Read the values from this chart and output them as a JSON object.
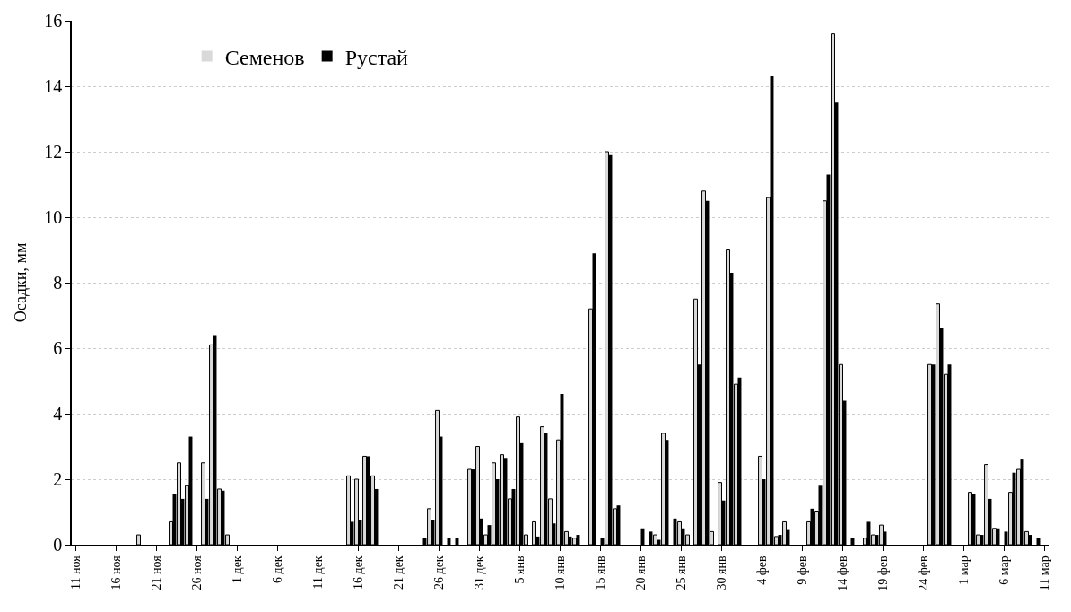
{
  "chart_data": {
    "type": "bar",
    "ylabel": "Осадки, мм",
    "categories": [
      "11 ноя",
      null,
      null,
      null,
      null,
      "16 ноя",
      null,
      null,
      null,
      null,
      "21 ноя",
      null,
      null,
      null,
      null,
      "26 ноя",
      null,
      null,
      null,
      null,
      "1 дек",
      null,
      null,
      null,
      null,
      "6 дек",
      null,
      null,
      null,
      null,
      "11 дек",
      null,
      null,
      null,
      null,
      "16 дек",
      null,
      null,
      null,
      null,
      "21 дек",
      null,
      null,
      null,
      null,
      "26 дек",
      null,
      null,
      null,
      null,
      "31 дек",
      null,
      null,
      null,
      null,
      "5 янв",
      null,
      null,
      null,
      null,
      "10 янв",
      null,
      null,
      null,
      null,
      "15 янв",
      null,
      null,
      null,
      null,
      "20 янв",
      null,
      null,
      null,
      null,
      "25 янв",
      null,
      null,
      null,
      null,
      "30 янв",
      null,
      null,
      null,
      null,
      "4 фев",
      null,
      null,
      null,
      null,
      "9 фев",
      null,
      null,
      null,
      null,
      "14 фев",
      null,
      null,
      null,
      null,
      "19 фев",
      null,
      null,
      null,
      null,
      "24 фев",
      null,
      null,
      null,
      null,
      "1 мар",
      null,
      null,
      null,
      null,
      "6 мар",
      null,
      null,
      null,
      null,
      "11 мар"
    ],
    "series": [
      {
        "name": "Семенов",
        "color": "#d9d9d9",
        "values": [
          0,
          0,
          0,
          0,
          0,
          0,
          0,
          0,
          0.3,
          0,
          0,
          0,
          0.7,
          2.5,
          1.8,
          0,
          2.5,
          6.1,
          1.7,
          0.3,
          0,
          0,
          0,
          0,
          0,
          0,
          0,
          0,
          0,
          0,
          0,
          0,
          0,
          0,
          2.1,
          2.0,
          2.7,
          2.1,
          0,
          0,
          0,
          0,
          0,
          0,
          1.1,
          4.1,
          0,
          0,
          0,
          2.3,
          3.0,
          0.3,
          2.5,
          2.75,
          1.4,
          3.9,
          0.3,
          0.7,
          3.6,
          1.4,
          3.2,
          0.4,
          0.2,
          0,
          7.2,
          0,
          12.0,
          1.1,
          0,
          0,
          0,
          0,
          0.3,
          3.4,
          0,
          0.7,
          0.3,
          7.5,
          10.8,
          0.4,
          1.9,
          9.0,
          4.9,
          0,
          0,
          2.7,
          10.6,
          0.25,
          0.7,
          0,
          0,
          0.7,
          1.0,
          10.5,
          15.6,
          5.5,
          0,
          0,
          0.2,
          0.3,
          0.6,
          0,
          0,
          0,
          0,
          0,
          5.5,
          7.35,
          5.2,
          0,
          0,
          1.6,
          0.3,
          2.45,
          0.5,
          0,
          1.6,
          2.3,
          0.4,
          0,
          0
        ]
      },
      {
        "name": "Рустай",
        "color": "#000000",
        "values": [
          0,
          0,
          0,
          0,
          0,
          0,
          0,
          0,
          0,
          0,
          0,
          0,
          1.55,
          1.4,
          3.3,
          0,
          1.4,
          6.4,
          1.65,
          0,
          0,
          0,
          0,
          0,
          0,
          0,
          0,
          0,
          0,
          0,
          0,
          0,
          0,
          0,
          0.7,
          0.75,
          2.7,
          1.7,
          0,
          0,
          0,
          0,
          0,
          0.2,
          0.75,
          3.3,
          0.2,
          0.2,
          0,
          2.3,
          0.8,
          0.6,
          2.0,
          2.65,
          1.7,
          3.1,
          0,
          0.25,
          3.4,
          0.65,
          4.6,
          0.25,
          0.3,
          0,
          8.9,
          0.2,
          11.9,
          1.2,
          0,
          0,
          0.5,
          0.4,
          0.15,
          3.2,
          0.8,
          0.5,
          0,
          5.5,
          10.5,
          0,
          1.35,
          8.3,
          5.1,
          0,
          0,
          2.0,
          14.3,
          0.3,
          0.45,
          0,
          0,
          1.1,
          1.8,
          11.3,
          13.5,
          4.4,
          0.2,
          0,
          0.7,
          0.3,
          0.4,
          0,
          0,
          0,
          0,
          0,
          5.5,
          6.6,
          5.5,
          0,
          0,
          1.55,
          0.3,
          1.4,
          0.5,
          0.4,
          2.2,
          2.6,
          0.3,
          0.2,
          0
        ]
      }
    ],
    "ylim": [
      0,
      16
    ],
    "yticks": [
      0,
      2,
      4,
      6,
      8,
      10,
      12,
      14,
      16
    ],
    "grid": "y",
    "legend": "top left"
  }
}
